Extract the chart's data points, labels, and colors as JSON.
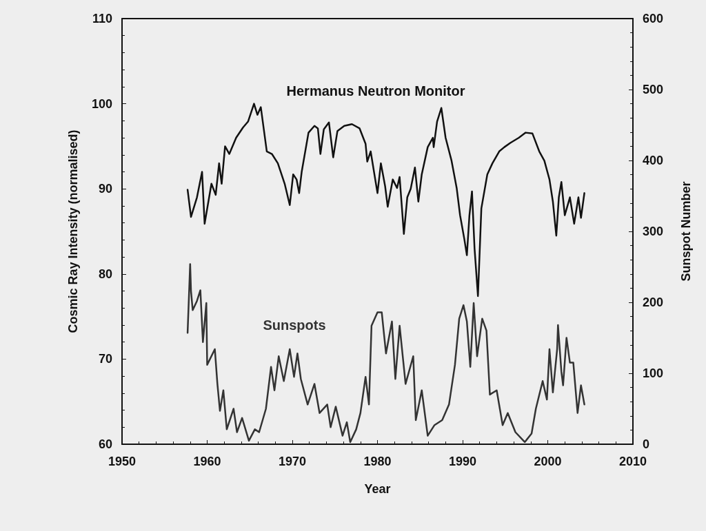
{
  "chart_data": {
    "type": "line",
    "xlabel": "Year",
    "ylabel": "Cosmic Ray Intensity (normalised)",
    "y2label": "Sunspot Number",
    "xlim": [
      1950,
      2010
    ],
    "xticks": [
      1950,
      1960,
      1970,
      1980,
      1990,
      2000,
      2010
    ],
    "ylim": [
      60,
      110
    ],
    "yticks": [
      60,
      70,
      80,
      90,
      100,
      110
    ],
    "y2lim": [
      0,
      600
    ],
    "y2ticks": [
      0,
      100,
      200,
      300,
      400,
      500,
      600
    ],
    "marker": "none",
    "line_style": "solid",
    "series": [
      {
        "name": "Hermanus Neutron Monitor",
        "color": "#111111",
        "x": [
          1957.7,
          1958.1,
          1958.8,
          1959.4,
          1959.7,
          1960.5,
          1961.0,
          1961.4,
          1961.7,
          1962.1,
          1962.6,
          1963.4,
          1964.2,
          1964.8,
          1965.5,
          1965.9,
          1966.3,
          1967.0,
          1967.6,
          1968.3,
          1969.1,
          1969.7,
          1970.1,
          1970.5,
          1970.8,
          1971.1,
          1971.9,
          1972.6,
          1973.0,
          1973.3,
          1973.7,
          1974.3,
          1974.8,
          1975.3,
          1976.1,
          1977.0,
          1977.9,
          1978.6,
          1978.8,
          1979.2,
          1980.0,
          1980.4,
          1980.9,
          1981.2,
          1981.8,
          1982.3,
          1982.6,
          1983.1,
          1983.5,
          1983.9,
          1984.4,
          1984.8,
          1985.2,
          1985.9,
          1986.5,
          1986.6,
          1987.0,
          1987.5,
          1988.0,
          1988.7,
          1989.3,
          1989.7,
          1990.2,
          1990.5,
          1990.8,
          1991.1,
          1991.4,
          1991.8,
          1992.2,
          1992.9,
          1993.5,
          1994.3,
          1994.9,
          1995.6,
          1996.6,
          1997.4,
          1998.2,
          1999.0,
          1999.6,
          2000.2,
          2000.6,
          2001.0,
          2001.3,
          2001.6,
          2002.0,
          2002.6,
          2003.1,
          2003.6,
          2003.9,
          2004.3
        ],
        "values": [
          89.9,
          86.7,
          89.0,
          92.0,
          85.9,
          90.6,
          89.3,
          93.0,
          90.6,
          95.0,
          94.1,
          96.0,
          97.2,
          97.9,
          100.0,
          98.7,
          99.6,
          94.4,
          94.1,
          93.0,
          90.6,
          88.1,
          91.7,
          91.1,
          89.5,
          92.0,
          96.6,
          97.4,
          97.1,
          94.1,
          97.0,
          97.8,
          93.7,
          96.8,
          97.4,
          97.6,
          97.1,
          95.3,
          93.2,
          94.4,
          89.5,
          93.0,
          90.3,
          87.9,
          91.1,
          90.1,
          91.4,
          84.7,
          89.0,
          90.0,
          92.5,
          88.5,
          91.7,
          94.9,
          96.0,
          94.9,
          97.9,
          99.5,
          96.0,
          93.3,
          90.1,
          86.9,
          84.1,
          82.2,
          86.9,
          89.7,
          83.0,
          77.4,
          87.7,
          91.7,
          93.0,
          94.4,
          94.9,
          95.4,
          96.0,
          96.6,
          96.5,
          94.4,
          93.3,
          91.1,
          88.5,
          84.5,
          89.0,
          90.8,
          86.9,
          89.0,
          85.9,
          89.0,
          86.6,
          89.5
        ]
      },
      {
        "name": "Sunspots",
        "color": "#333333",
        "axis": "y2",
        "x": [
          1957.7,
          1958.0,
          1958.1,
          1958.3,
          1958.8,
          1959.2,
          1959.5,
          1959.9,
          1960.0,
          1960.9,
          1961.2,
          1961.5,
          1961.9,
          1962.3,
          1963.1,
          1963.5,
          1964.1,
          1964.9,
          1965.6,
          1966.1,
          1966.9,
          1967.5,
          1967.9,
          1968.4,
          1969.0,
          1969.7,
          1970.2,
          1970.6,
          1971.0,
          1971.8,
          1972.6,
          1973.2,
          1974.1,
          1974.5,
          1975.1,
          1975.9,
          1976.4,
          1976.8,
          1977.5,
          1978.0,
          1978.6,
          1979.0,
          1979.3,
          1980.0,
          1980.5,
          1981.0,
          1981.7,
          1982.1,
          1982.6,
          1983.3,
          1984.2,
          1984.5,
          1985.2,
          1985.9,
          1986.7,
          1987.6,
          1988.4,
          1989.1,
          1989.6,
          1990.1,
          1990.5,
          1990.9,
          1991.3,
          1991.7,
          1992.3,
          1992.8,
          1993.2,
          1994.0,
          1994.7,
          1995.3,
          1996.2,
          1997.3,
          1998.1,
          1998.6,
          1999.4,
          1999.9,
          2000.2,
          2000.6,
          2001.1,
          2001.2,
          2001.6,
          2001.8,
          2002.2,
          2002.6,
          2003.0,
          2003.5,
          2003.9,
          2004.3
        ],
        "values": [
          157,
          254,
          216,
          189,
          202,
          217,
          144,
          199,
          112,
          134,
          85,
          47,
          76,
          21,
          50,
          17,
          37,
          5,
          21,
          17,
          50,
          109,
          76,
          124,
          89,
          134,
          95,
          128,
          92,
          56,
          85,
          44,
          56,
          24,
          53,
          12,
          31,
          3,
          21,
          44,
          95,
          56,
          167,
          186,
          186,
          128,
          173,
          92,
          167,
          85,
          124,
          34,
          76,
          12,
          27,
          34,
          56,
          112,
          177,
          196,
          173,
          109,
          199,
          124,
          177,
          160,
          70,
          76,
          27,
          44,
          17,
          3,
          15,
          50,
          89,
          63,
          134,
          73,
          134,
          168,
          102,
          83,
          150,
          115,
          115,
          44,
          83,
          56
        ]
      }
    ]
  }
}
